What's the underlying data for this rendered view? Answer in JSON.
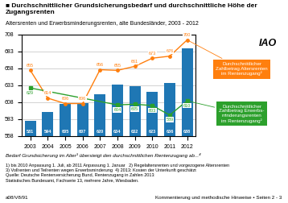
{
  "chart_data": {
    "type": "bar",
    "title": "■ Durchschnittlicher Grundsicherungsbedarf und durchschnittliche Höhe der Zugangsrenten",
    "subtitle": "Altersrenten und Erwerbsminderungsrenten, alte Bundesländer, 2003 - 2012",
    "categories": [
      "2003",
      "2004",
      "2005",
      "2006",
      "2007",
      "2008",
      "2009",
      "2010",
      "2011",
      "2012"
    ],
    "series": [
      {
        "type": "bar",
        "color": "#1f77b4",
        "values": [
          581,
          594,
          605,
          607,
          620,
          634,
          632,
          623,
          636,
          688
        ],
        "data_labels": true
      },
      {
        "type": "line",
        "name": "Durchschnittlicher\nZahlbetrag Altersrenten\nim Rentenzugang²",
        "color": "#ff7f0e",
        "marker": "o",
        "values": [
          655,
          614,
          606,
          606,
          656,
          655,
          661,
          673,
          676,
          700
        ],
        "data_labels": true
      },
      {
        "type": "line",
        "name": "Durchschnittlicher\nZahlbetrag Erwerbs-\nminderungsrenten\nim Rentenzugang²",
        "color": "#2ca02c",
        "marker": "s",
        "values": [
          629,
          null,
          null,
          null,
          null,
          604,
          605,
          603,
          589,
          610
        ],
        "data_labels": true
      }
    ],
    "ylim": [
      558,
      708
    ],
    "yticks": [
      558,
      583,
      608,
      633,
      658,
      683,
      708
    ],
    "grid": true,
    "annotations": {
      "logo": "IAO",
      "highlight": "Bedarf Grundsicherung im Alter³ übersteigt den durchschnittlichen Rentenzugang ab...⁴",
      "footnote": "1) bis 2010 Anpassung 1. Juli, ab 2011 Anpassung 1. Januar   2) Regelaltersrenten und vorgezogene Altersrenten\n3) Vollrenten und Teilrenten wegen Erwerbsminderung  4) 2013: Kosten der Unterkunft geschätzt\nQuelle: Deutsche Rentenversicherung Bund, Rentenzugang in Zahlen 2013\nStatistisches Bundesamt, Fachserie 13, mehrere Jahre, Wiesbaden.",
      "bottom_left": "a08/V8/91",
      "bottom_right": "Kommentierung und methodische Hinweise • Seiten 2 - 3"
    }
  }
}
